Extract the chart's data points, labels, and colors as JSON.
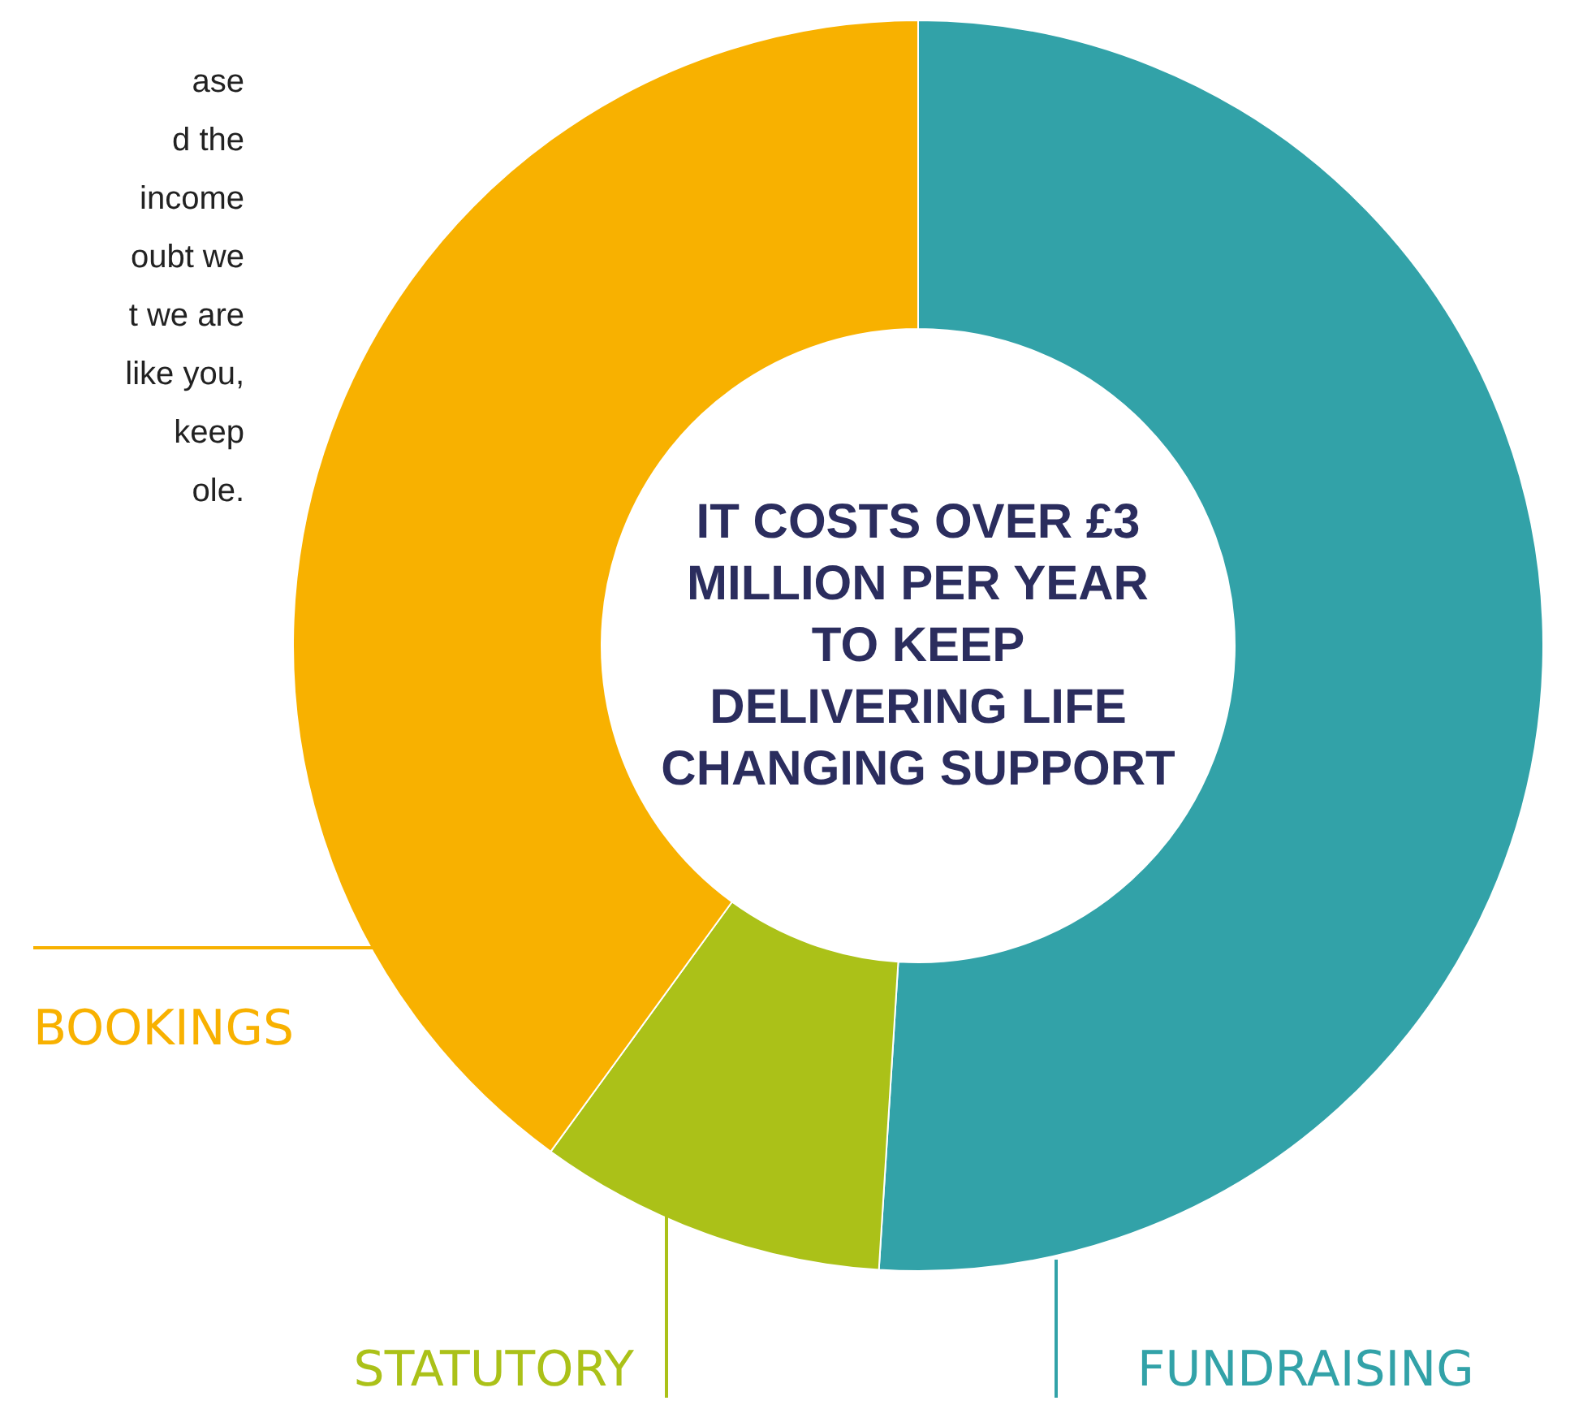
{
  "chart_data": {
    "type": "donut",
    "title": "IT COSTS OVER £3 MILLION PER YEAR TO KEEP DELIVERING LIFE CHANGING SUPPORT",
    "categories": [
      "FUNDRAISING",
      "STATUTORY",
      "BOOKINGS"
    ],
    "values": [
      51,
      9,
      40
    ],
    "colors": [
      "#32a2a8",
      "#abc118",
      "#f8b100"
    ],
    "annotations": [
      "ase",
      "d the",
      "income",
      "oubt we",
      "t we are",
      "like you,",
      "keep",
      "ole."
    ]
  }
}
